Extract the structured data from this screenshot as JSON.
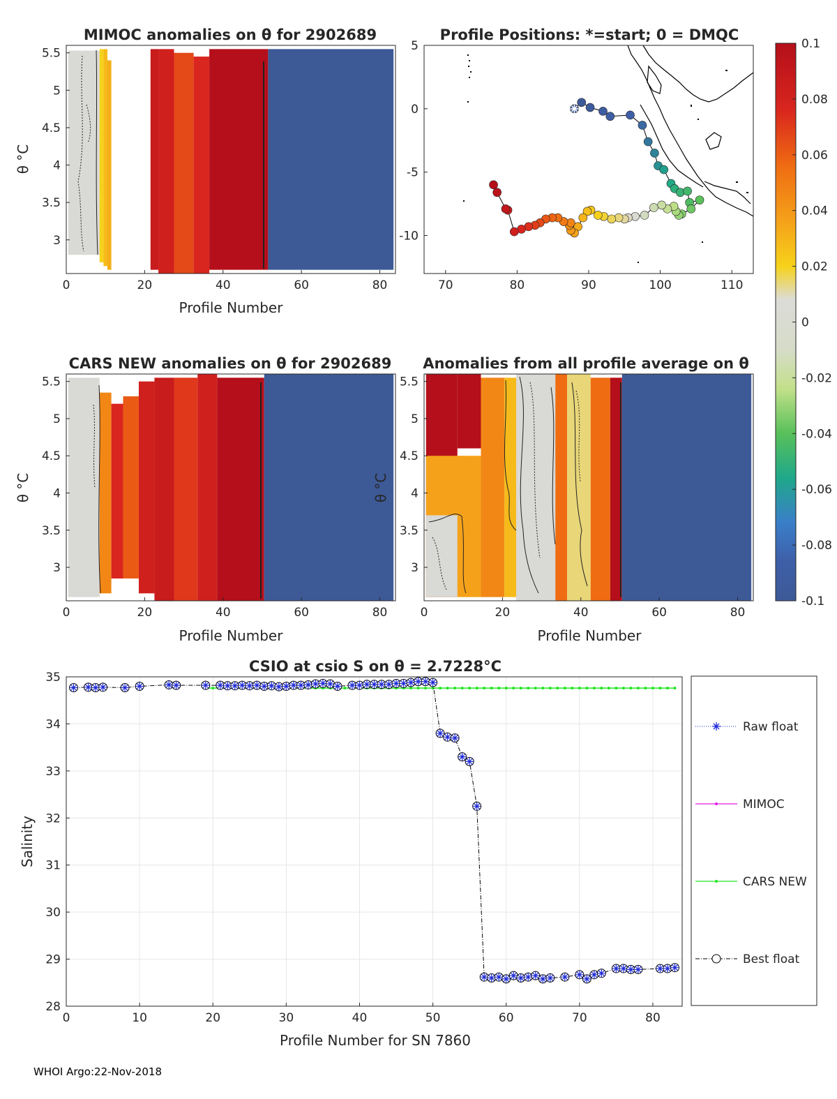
{
  "colors": {
    "blue_fill": "#3d5a96",
    "dark_red": "#b40f1a",
    "red": "#d6201c",
    "orange": "#ee6a10",
    "yellow": "#f6d21a",
    "neutral": "#d8d8d6",
    "raw_float": "#1f2bd6",
    "mimoc": "#e31ae3",
    "cars": "#22e522",
    "best": "#000000"
  },
  "colorbar": {
    "ticks": [
      0.1,
      0.08,
      0.06,
      0.04,
      0.02,
      0,
      -0.02,
      -0.04,
      -0.06,
      -0.08,
      -0.1
    ],
    "tick_labels": [
      "0.1",
      "0.08",
      "0.06",
      "0.04",
      "0.02",
      "0",
      "-0.02",
      "-0.04",
      "-0.06",
      "-0.08",
      "-0.1"
    ]
  },
  "footer": "WHOI Argo:22-Nov-2018",
  "chart_data": [
    {
      "id": "mimoc",
      "type": "heatmap",
      "title": "MIMOC anomalies on θ  for 2902689",
      "xlabel": "Profile Number",
      "ylabel": "θ °C",
      "xlim": [
        0,
        84
      ],
      "ylim": [
        2.55,
        5.6
      ],
      "xticks": [
        0,
        20,
        40,
        60,
        80
      ],
      "xtick_labels": [
        "0",
        "20",
        "40",
        "60",
        "80"
      ],
      "yticks": [
        3,
        3.5,
        4,
        4.5,
        5,
        5.5
      ],
      "ytick_labels": [
        "3",
        "3.5",
        "4",
        "4.5",
        "5",
        "5.5"
      ],
      "bands": [
        {
          "from": 0.5,
          "to": 8.5,
          "top": 5.53,
          "bottom": 2.8,
          "value": 0.0
        },
        {
          "from": 8.5,
          "to": 9.5,
          "top": 5.55,
          "bottom": 2.7,
          "value": 0.02
        },
        {
          "from": 9.5,
          "to": 10.5,
          "top": 5.55,
          "bottom": 2.65,
          "value": 0.03
        },
        {
          "from": 10.5,
          "to": 11.5,
          "top": 5.4,
          "bottom": 2.6,
          "value": 0.035
        },
        {
          "from": 21.5,
          "to": 23.5,
          "top": 5.55,
          "bottom": 2.6,
          "value": 0.09
        },
        {
          "from": 23.5,
          "to": 27.5,
          "top": 5.55,
          "bottom": 2.55,
          "value": 0.085
        },
        {
          "from": 27.5,
          "to": 32.5,
          "top": 5.5,
          "bottom": 2.55,
          "value": 0.07
        },
        {
          "from": 32.5,
          "to": 36.5,
          "top": 5.45,
          "bottom": 2.55,
          "value": 0.08
        },
        {
          "from": 36.5,
          "to": 51.5,
          "top": 5.55,
          "bottom": 2.6,
          "value": 0.1
        },
        {
          "from": 51.5,
          "to": 83.5,
          "top": 5.55,
          "bottom": 2.6,
          "value": -0.1
        }
      ]
    },
    {
      "id": "positions",
      "type": "scatter",
      "title": "Profile Positions: *=start; 0 = DMQC",
      "xlim": [
        67,
        113
      ],
      "ylim": [
        -13,
        5
      ],
      "xticks": [
        70,
        80,
        90,
        100,
        110
      ],
      "xtick_labels": [
        "70",
        "80",
        "90",
        "100",
        "110"
      ],
      "yticks": [
        5,
        0,
        -5,
        -10
      ],
      "ytick_labels": [
        "5",
        "0",
        "-5",
        "-10"
      ],
      "track_lon": [
        88,
        89,
        90.2,
        92,
        93,
        95.8,
        97.5,
        98.3,
        99.2,
        99.7,
        100.5,
        101.5,
        102,
        102.8,
        103.8,
        104.1,
        105.5,
        104.3,
        103,
        102.6,
        102.2,
        101.9,
        101,
        100.2,
        99.1,
        97.8,
        96.5,
        95.5,
        95,
        94.2,
        93.2,
        92.1,
        91.3,
        90.3,
        89.8,
        89.2,
        88.5,
        88,
        87.5,
        87.3,
        87.5,
        86.5,
        85.7,
        84.9,
        84,
        83.2,
        82.5,
        81.6,
        80.6,
        79.6,
        78.7,
        78.4,
        77.2,
        76.7
      ],
      "track_lat": [
        0,
        0.5,
        0.1,
        -0.2,
        -0.6,
        -0.5,
        -1.3,
        -2.6,
        -3.5,
        -4.5,
        -4.8,
        -5.9,
        -6.3,
        -6.6,
        -6.5,
        -7.4,
        -7.2,
        -7.9,
        -8.3,
        -8.4,
        -8.1,
        -7.7,
        -7.9,
        -7.6,
        -7.8,
        -8.4,
        -8.5,
        -8.6,
        -8.7,
        -8.6,
        -8.7,
        -8.5,
        -8.4,
        -8.0,
        -8.1,
        -8.6,
        -9.3,
        -9.8,
        -9.6,
        -9.2,
        -9.0,
        -8.9,
        -8.6,
        -8.6,
        -8.7,
        -9.0,
        -9.2,
        -9.3,
        -9.5,
        -9.7,
        -8.0,
        -7.9,
        -6.6,
        -6.0
      ]
    },
    {
      "id": "cars",
      "type": "heatmap",
      "title": "CARS NEW anomalies on θ for 2902689",
      "xlabel": "Profile Number",
      "ylabel": "θ °C",
      "xlim": [
        0,
        84
      ],
      "ylim": [
        2.55,
        5.6
      ],
      "xticks": [
        0,
        20,
        40,
        60,
        80
      ],
      "xtick_labels": [
        "0",
        "20",
        "40",
        "60",
        "80"
      ],
      "yticks": [
        3,
        3.5,
        4,
        4.5,
        5,
        5.5
      ],
      "ytick_labels": [
        "3",
        "3.5",
        "4",
        "4.5",
        "5",
        "5.5"
      ],
      "bands": [
        {
          "from": 0.5,
          "to": 8.5,
          "top": 5.55,
          "bottom": 2.6,
          "value": 0.0
        },
        {
          "from": 8.5,
          "to": 11.5,
          "top": 5.35,
          "bottom": 2.65,
          "value": 0.05
        },
        {
          "from": 11.5,
          "to": 14.5,
          "top": 5.2,
          "bottom": 2.85,
          "value": 0.08
        },
        {
          "from": 14.5,
          "to": 18.5,
          "top": 5.3,
          "bottom": 2.85,
          "value": 0.065
        },
        {
          "from": 18.5,
          "to": 22.5,
          "top": 5.5,
          "bottom": 2.65,
          "value": 0.085
        },
        {
          "from": 22.5,
          "to": 27.5,
          "top": 5.55,
          "bottom": 2.55,
          "value": 0.09
        },
        {
          "from": 27.5,
          "to": 33.5,
          "top": 5.55,
          "bottom": 2.55,
          "value": 0.075
        },
        {
          "from": 33.5,
          "to": 38.5,
          "top": 5.6,
          "bottom": 2.55,
          "value": 0.085
        },
        {
          "from": 38.5,
          "to": 50.5,
          "top": 5.55,
          "bottom": 2.55,
          "value": 0.1
        },
        {
          "from": 50.5,
          "to": 83.5,
          "top": 5.6,
          "bottom": 2.55,
          "value": -0.1
        }
      ]
    },
    {
      "id": "allavg",
      "type": "heatmap",
      "title": "Anomalies from all profile average on θ",
      "xlabel": "Profile Number",
      "ylabel": "θ °C",
      "xlim": [
        0,
        84
      ],
      "ylim": [
        2.55,
        5.6
      ],
      "xticks": [
        0,
        20,
        40,
        60,
        80
      ],
      "xtick_labels": [
        "0",
        "20",
        "40",
        "60",
        "80"
      ],
      "yticks": [
        3,
        3.5,
        4,
        4.5,
        5,
        5.5
      ],
      "ytick_labels": [
        "3",
        "3.5",
        "4",
        "4.5",
        "5",
        "5.5"
      ],
      "bands": [
        {
          "from": 0.5,
          "to": 8.5,
          "top": 5.6,
          "bottom": 2.6,
          "value": 0.1
        },
        {
          "from": 0.5,
          "to": 14.5,
          "top": 4.5,
          "bottom": 2.6,
          "value": 0.04
        },
        {
          "from": 0.5,
          "to": 8.5,
          "top": 3.7,
          "bottom": 2.6,
          "value": 0.0
        },
        {
          "from": 8.5,
          "to": 14.5,
          "top": 5.6,
          "bottom": 4.6,
          "value": 0.1
        },
        {
          "from": 14.5,
          "to": 20.5,
          "top": 5.55,
          "bottom": 2.6,
          "value": 0.05
        },
        {
          "from": 20.5,
          "to": 23.5,
          "top": 5.55,
          "bottom": 2.6,
          "value": 0.03
        },
        {
          "from": 23.5,
          "to": 33.5,
          "top": 5.6,
          "bottom": 2.55,
          "value": 0.0
        },
        {
          "from": 33.5,
          "to": 36.5,
          "top": 5.6,
          "bottom": 2.55,
          "value": 0.06
        },
        {
          "from": 36.5,
          "to": 42.5,
          "top": 5.6,
          "bottom": 2.55,
          "value": 0.01
        },
        {
          "from": 42.5,
          "to": 47.5,
          "top": 5.55,
          "bottom": 2.55,
          "value": 0.06
        },
        {
          "from": 47.5,
          "to": 50.5,
          "top": 5.55,
          "bottom": 2.55,
          "value": 0.1
        },
        {
          "from": 50.5,
          "to": 83.5,
          "top": 5.6,
          "bottom": 2.55,
          "value": -0.1
        }
      ]
    },
    {
      "id": "salinity",
      "type": "line",
      "title": "CSIO at csio S on θ = 2.7228°C",
      "xlabel": "Profile Number for SN 7860",
      "ylabel": "Salinity",
      "xlim": [
        0,
        84
      ],
      "ylim": [
        28,
        35
      ],
      "xticks": [
        0,
        10,
        20,
        30,
        40,
        50,
        60,
        70,
        80
      ],
      "xtick_labels": [
        "0",
        "10",
        "20",
        "30",
        "40",
        "50",
        "60",
        "70",
        "80"
      ],
      "yticks": [
        28,
        29,
        30,
        31,
        32,
        33,
        34,
        35
      ],
      "ytick_labels": [
        "28",
        "29",
        "30",
        "31",
        "32",
        "33",
        "34",
        "35"
      ],
      "float_x": [
        1,
        3,
        4,
        5,
        8,
        10,
        14,
        15,
        19,
        21,
        22,
        23,
        24,
        25,
        26,
        27,
        28,
        29,
        30,
        31,
        32,
        33,
        34,
        35,
        36,
        37,
        39,
        40,
        41,
        42,
        43,
        44,
        45,
        46,
        47,
        48,
        49,
        50,
        51,
        52,
        53,
        54,
        55,
        56,
        57,
        58,
        59,
        60,
        61,
        62,
        63,
        64,
        65,
        66,
        68,
        70,
        71,
        72,
        73,
        75,
        76,
        77,
        78,
        81,
        82,
        83
      ],
      "float_y": [
        34.77,
        34.78,
        34.77,
        34.78,
        34.77,
        34.8,
        34.83,
        34.82,
        34.82,
        34.82,
        34.81,
        34.81,
        34.82,
        34.81,
        34.82,
        34.8,
        34.81,
        34.79,
        34.8,
        34.82,
        34.82,
        34.83,
        34.85,
        34.86,
        34.85,
        34.8,
        34.82,
        34.82,
        34.84,
        34.84,
        34.84,
        34.84,
        34.86,
        34.86,
        34.88,
        34.9,
        34.9,
        34.88,
        33.8,
        33.72,
        33.7,
        33.3,
        33.2,
        32.25,
        28.62,
        28.6,
        28.62,
        28.58,
        28.65,
        28.6,
        28.62,
        28.65,
        28.58,
        28.6,
        28.62,
        28.67,
        28.58,
        28.67,
        28.7,
        28.8,
        28.8,
        28.78,
        28.78,
        28.8,
        28.8,
        28.82
      ],
      "cars_x": [
        19,
        20,
        21,
        22,
        23,
        24,
        25,
        26,
        27,
        28,
        29,
        30,
        31,
        32,
        33,
        34,
        35,
        36,
        37,
        38,
        39,
        40,
        41,
        42,
        43,
        44,
        45,
        46,
        47,
        48,
        49,
        50,
        51,
        52,
        53,
        54,
        55,
        56,
        57,
        58,
        59,
        60,
        61,
        62,
        63,
        64,
        65,
        66,
        67,
        68,
        69,
        70,
        71,
        72,
        73,
        74,
        75,
        76,
        77,
        78,
        79,
        80,
        81,
        82,
        83
      ],
      "cars_y": [
        34.76,
        34.76,
        34.76,
        34.76,
        34.76,
        34.76,
        34.76,
        34.76,
        34.76,
        34.76,
        34.76,
        34.76,
        34.76,
        34.76,
        34.76,
        34.76,
        34.76,
        34.76,
        34.76,
        34.76,
        34.76,
        34.76,
        34.76,
        34.76,
        34.76,
        34.76,
        34.76,
        34.76,
        34.76,
        34.76,
        34.76,
        34.76,
        34.76,
        34.76,
        34.76,
        34.76,
        34.76,
        34.76,
        34.76,
        34.76,
        34.76,
        34.76,
        34.76,
        34.76,
        34.76,
        34.76,
        34.76,
        34.76,
        34.76,
        34.76,
        34.76,
        34.76,
        34.76,
        34.76,
        34.76,
        34.76,
        34.76,
        34.76,
        34.76,
        34.76,
        34.76,
        34.76,
        34.76,
        34.76,
        34.76
      ],
      "legend": [
        "Raw float",
        "MIMOC",
        "CARS NEW",
        "Best float"
      ]
    }
  ]
}
